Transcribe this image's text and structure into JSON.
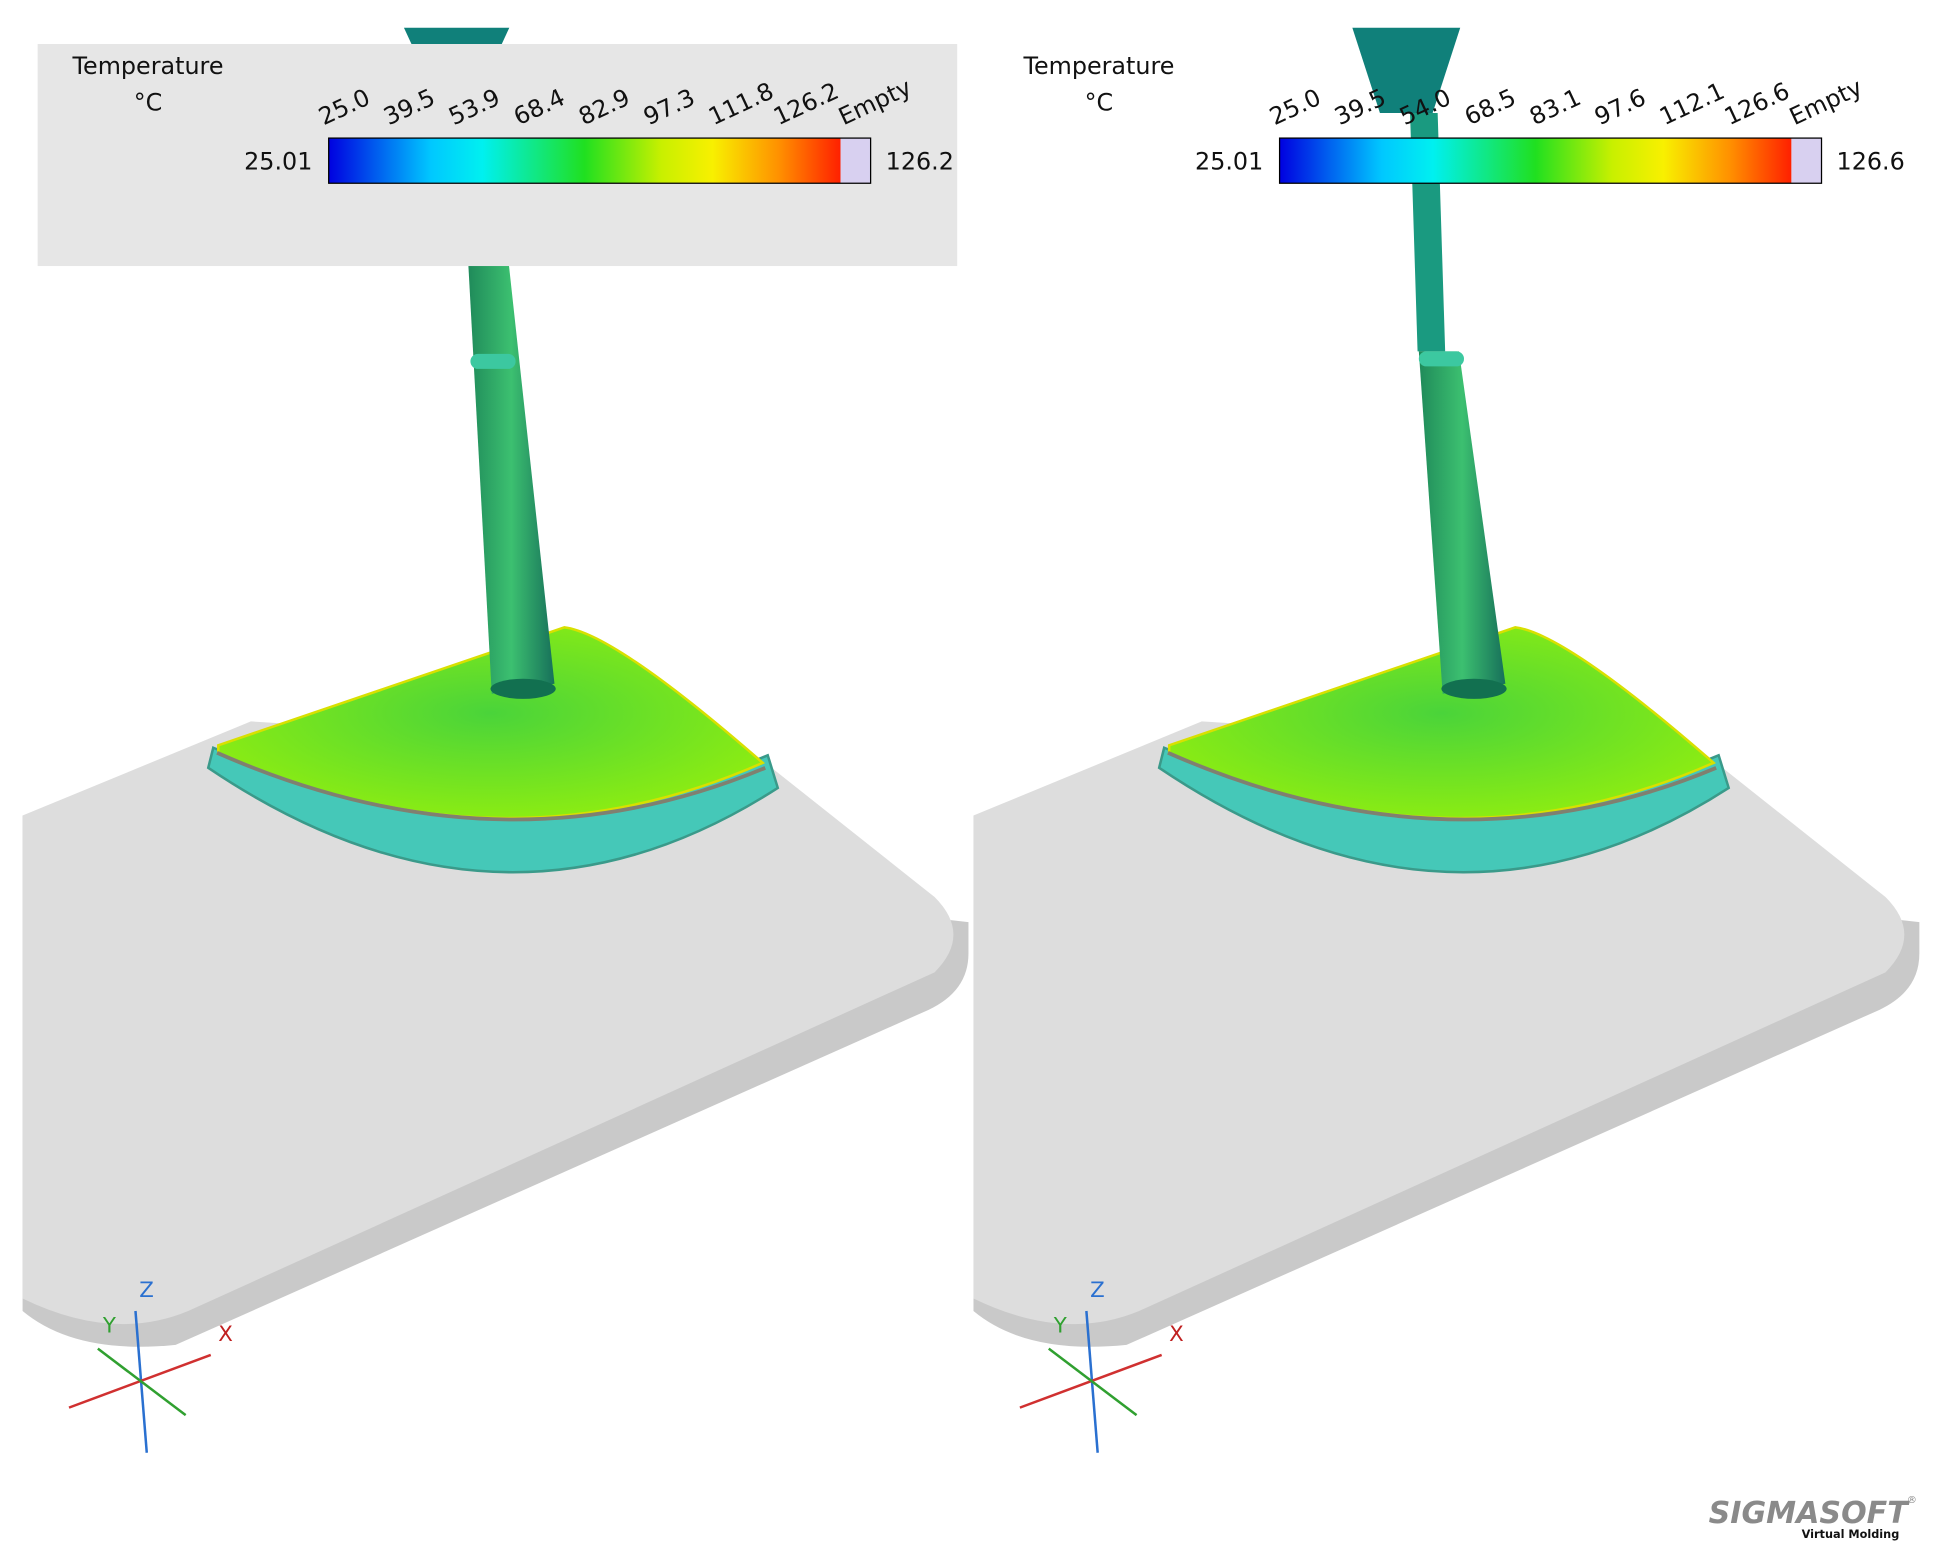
{
  "panels": [
    {
      "legend": {
        "title": "Temperature",
        "unit": "°C",
        "tick_labels": [
          "25.0",
          "39.5",
          "53.9",
          "68.4",
          "82.9",
          "97.3",
          "111.8",
          "126.2",
          "Empty"
        ],
        "min_label": "25.01",
        "max_label": "126.2"
      },
      "axes": {
        "x": "X",
        "y": "Y",
        "z": "Z"
      }
    },
    {
      "legend": {
        "title": "Temperature",
        "unit": "°C",
        "tick_labels": [
          "25.0",
          "39.5",
          "54.0",
          "68.5",
          "83.1",
          "97.6",
          "112.1",
          "126.6",
          "Empty"
        ],
        "min_label": "25.01",
        "max_label": "126.6"
      },
      "axes": {
        "x": "X",
        "y": "Y",
        "z": "Z"
      }
    }
  ],
  "logo": {
    "name": "SIGMASOFT",
    "mark": "®",
    "tagline": "Virtual Molding"
  }
}
